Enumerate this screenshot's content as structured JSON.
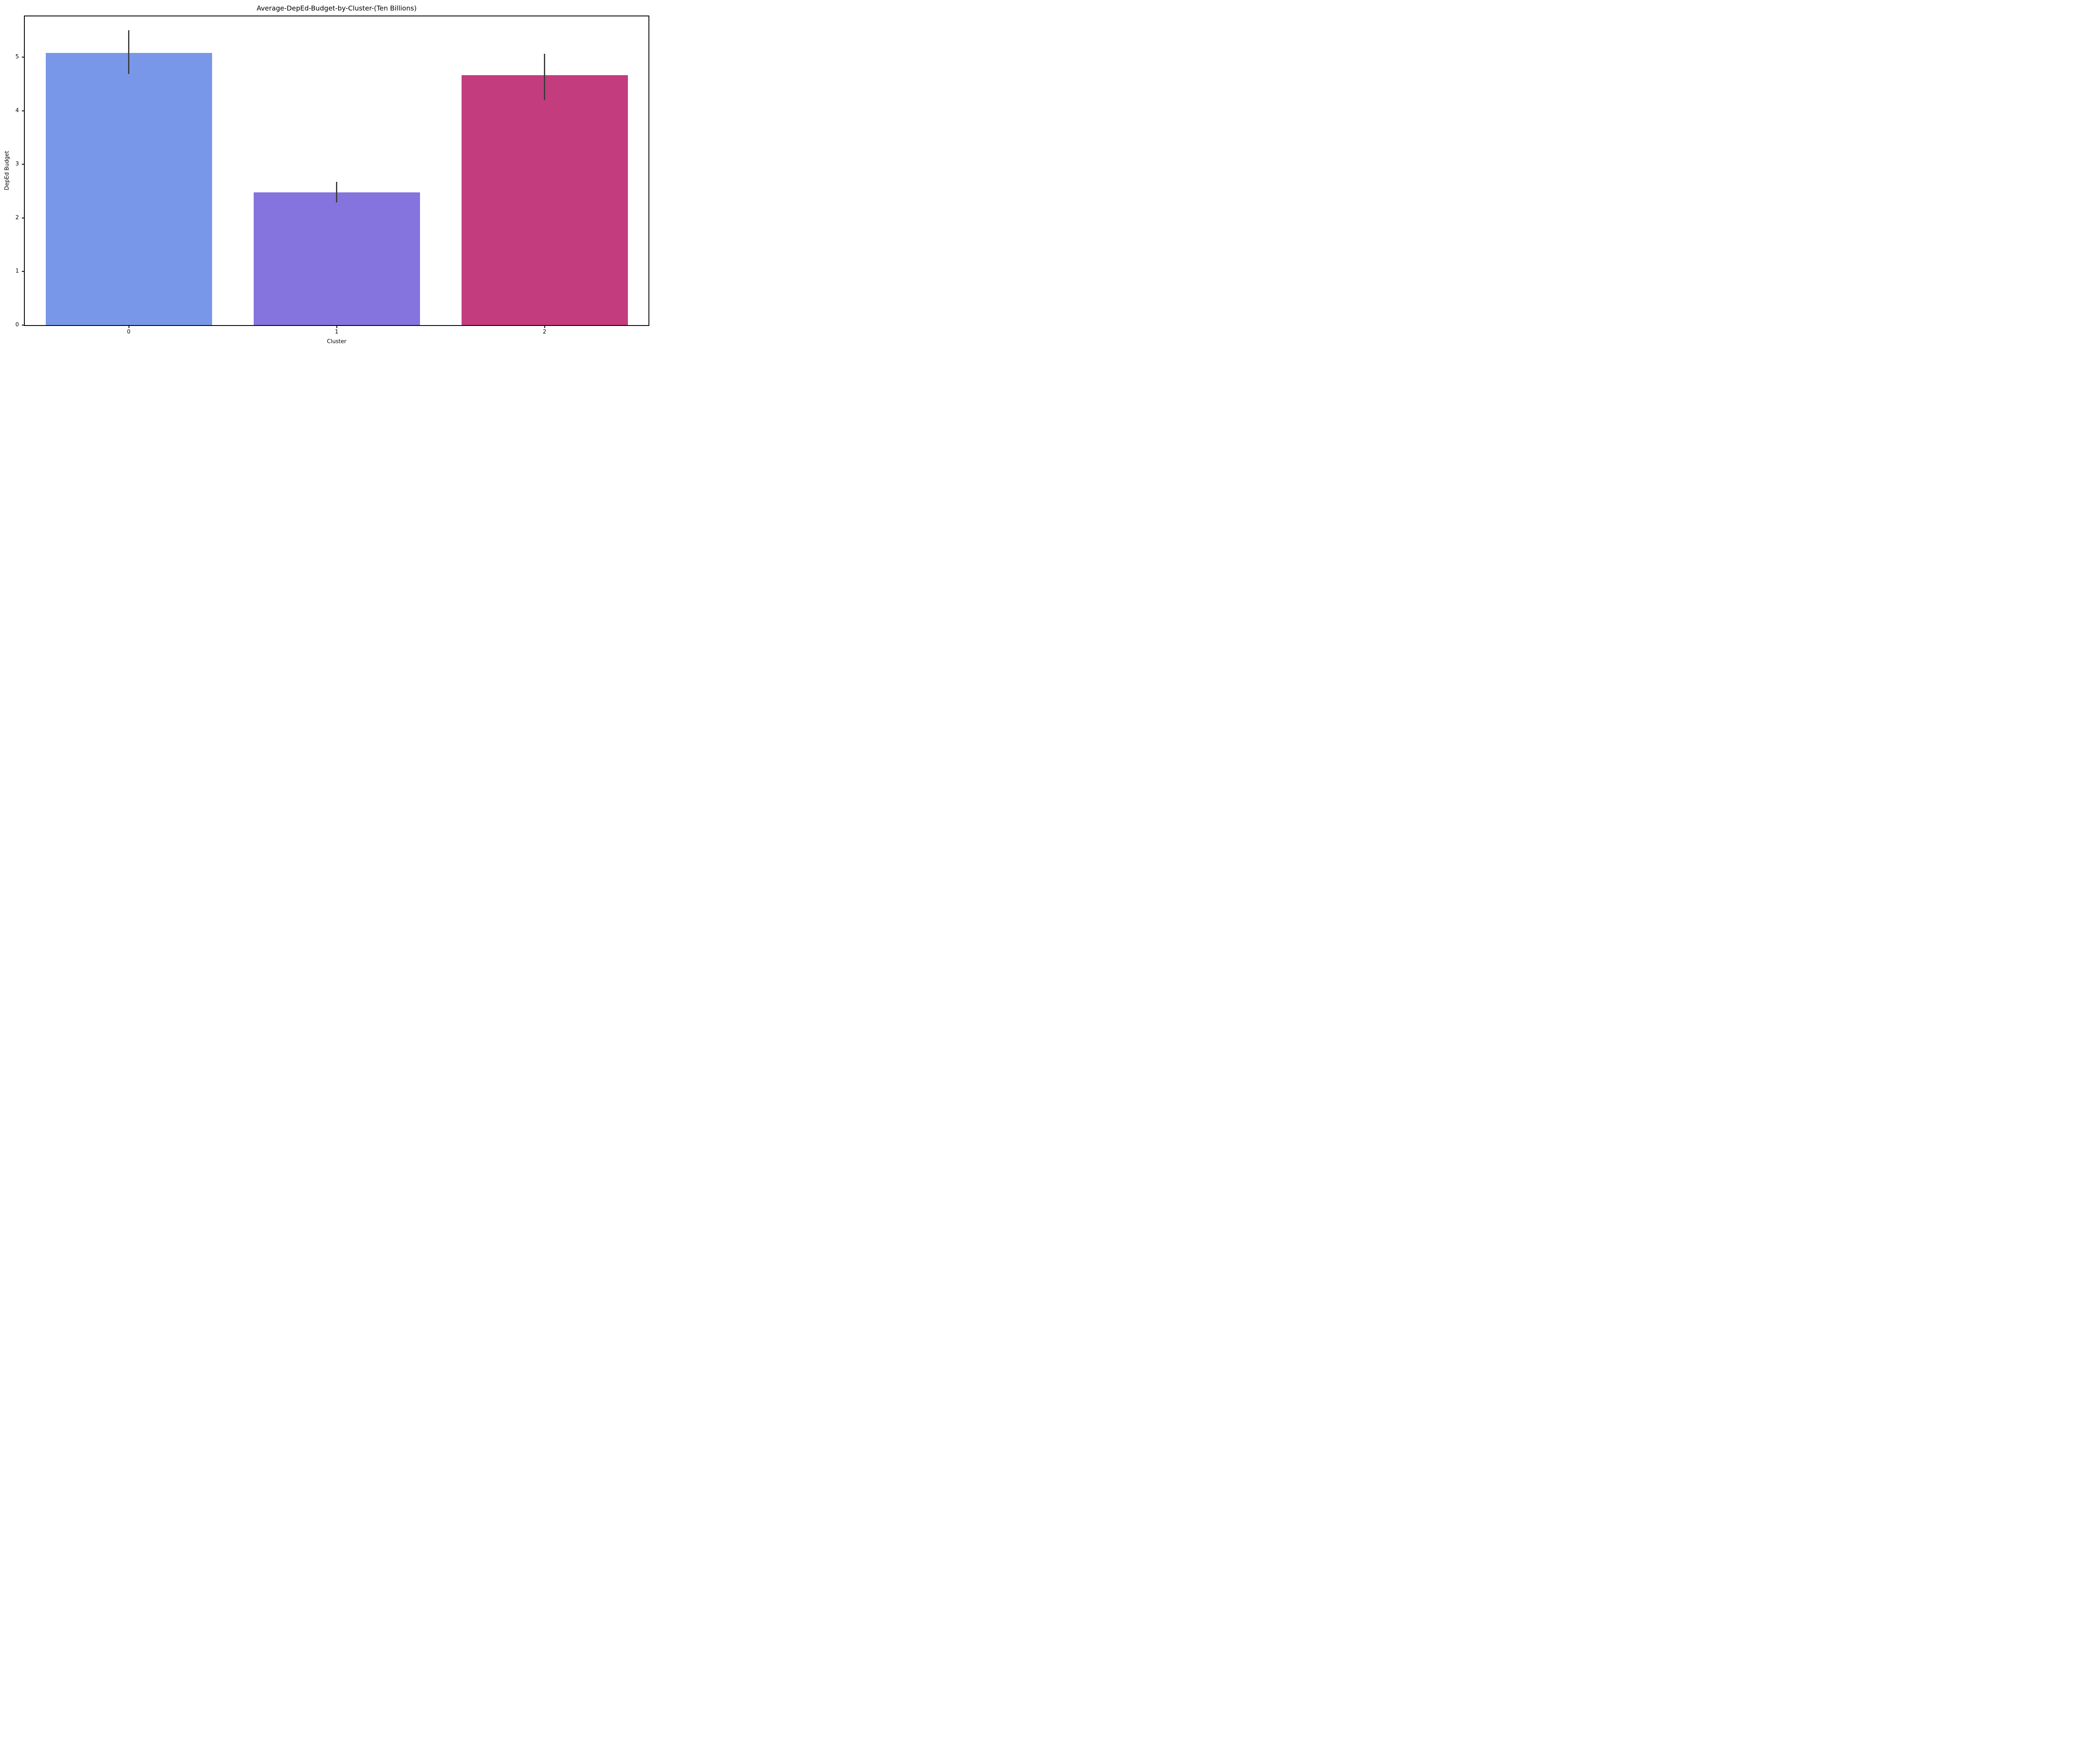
{
  "figure": {
    "title": "Average-DepEd-Budget-by-Cluster-(Ten Billions)",
    "background_color": "#ffffff",
    "spine_color": "#000000",
    "text_color": "#000000"
  },
  "chart_data": {
    "type": "bar",
    "title": "Average-DepEd-Budget-by-Cluster-(Ten Billions)",
    "xlabel": "Cluster",
    "ylabel": "DepEd Budget",
    "categories": [
      "0",
      "1",
      "2"
    ],
    "values": [
      5.08,
      2.48,
      4.66
    ],
    "error_bars": {
      "low": [
        4.69,
        2.29,
        4.2
      ],
      "high": [
        5.5,
        2.67,
        5.06
      ]
    },
    "bar_colors": [
      "#7897E8",
      "#8573DE",
      "#C23C7E"
    ],
    "error_bar_color": "#3a3a3a",
    "ylim": [
      0,
      5.76
    ],
    "yticks": [
      0,
      1,
      2,
      3,
      4,
      5
    ],
    "bar_width_fraction": 0.8,
    "grid": false,
    "legend": null
  }
}
